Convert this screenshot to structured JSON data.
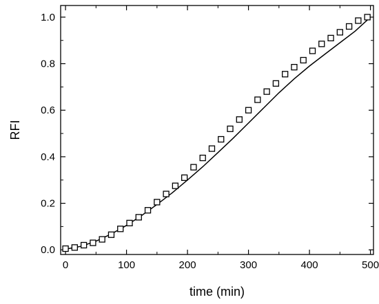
{
  "chart_data": {
    "type": "scatter",
    "xlabel": "time (min)",
    "ylabel": "RFI",
    "xlim": [
      -8,
      505
    ],
    "ylim": [
      -0.02,
      1.05
    ],
    "xticks": [
      0,
      100,
      200,
      300,
      400,
      500
    ],
    "xtick_labels": [
      "0",
      "100",
      "200",
      "300",
      "400",
      "500"
    ],
    "yticks": [
      0.0,
      0.2,
      0.4,
      0.6,
      0.8,
      1.0
    ],
    "ytick_labels": [
      "0.0",
      "0.2",
      "0.4",
      "0.6",
      "0.8",
      "1.0"
    ],
    "grid": false,
    "legend": "none",
    "series": [
      {
        "type": "scatter",
        "marker": "open-square",
        "x": [
          0,
          15,
          30,
          45,
          60,
          75,
          90,
          105,
          120,
          135,
          150,
          165,
          180,
          195,
          210,
          225,
          240,
          255,
          270,
          285,
          300,
          315,
          330,
          345,
          360,
          375,
          390,
          405,
          420,
          435,
          450,
          465,
          480,
          495
        ],
        "y": [
          0.005,
          0.01,
          0.02,
          0.03,
          0.045,
          0.065,
          0.09,
          0.115,
          0.14,
          0.17,
          0.205,
          0.24,
          0.275,
          0.31,
          0.355,
          0.395,
          0.435,
          0.475,
          0.52,
          0.56,
          0.6,
          0.645,
          0.68,
          0.715,
          0.755,
          0.785,
          0.815,
          0.855,
          0.885,
          0.91,
          0.935,
          0.96,
          0.985,
          1.0
        ]
      },
      {
        "type": "line",
        "x": [
          0,
          25,
          50,
          75,
          100,
          125,
          150,
          175,
          200,
          225,
          250,
          275,
          300,
          325,
          350,
          375,
          400,
          425,
          450,
          475,
          500
        ],
        "y": [
          0.003,
          0.015,
          0.037,
          0.068,
          0.105,
          0.148,
          0.195,
          0.245,
          0.3,
          0.357,
          0.418,
          0.48,
          0.545,
          0.61,
          0.675,
          0.735,
          0.79,
          0.84,
          0.89,
          0.94,
          1.0
        ]
      }
    ]
  }
}
